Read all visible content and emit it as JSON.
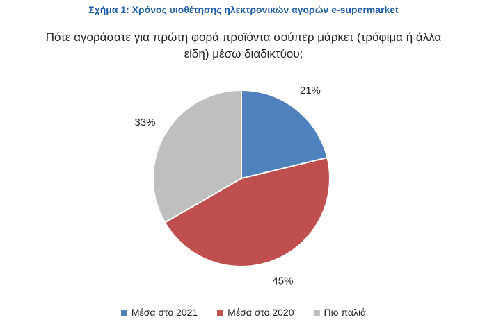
{
  "chart_data": {
    "type": "pie",
    "title": "Σχήμα 1: Χρόνος υιοθέτησης ηλεκτρονικών αγορών e-supermarket",
    "subtitle": "Πότε αγοράσατε για πρώτη φορά προϊόντα σούπερ μάρκετ (τρόφιμα ή άλλα είδη) μέσω διαδικτύου;",
    "categories": [
      "Μέσα στο 2021",
      "Μέσα στο 2020",
      "Πιο παλιά"
    ],
    "values": [
      21,
      45,
      33
    ],
    "value_labels": [
      "21%",
      "45%",
      "33%"
    ],
    "colors": [
      "#4f81bd",
      "#c0504d",
      "#bfbfbf"
    ],
    "legend": "bottom"
  }
}
